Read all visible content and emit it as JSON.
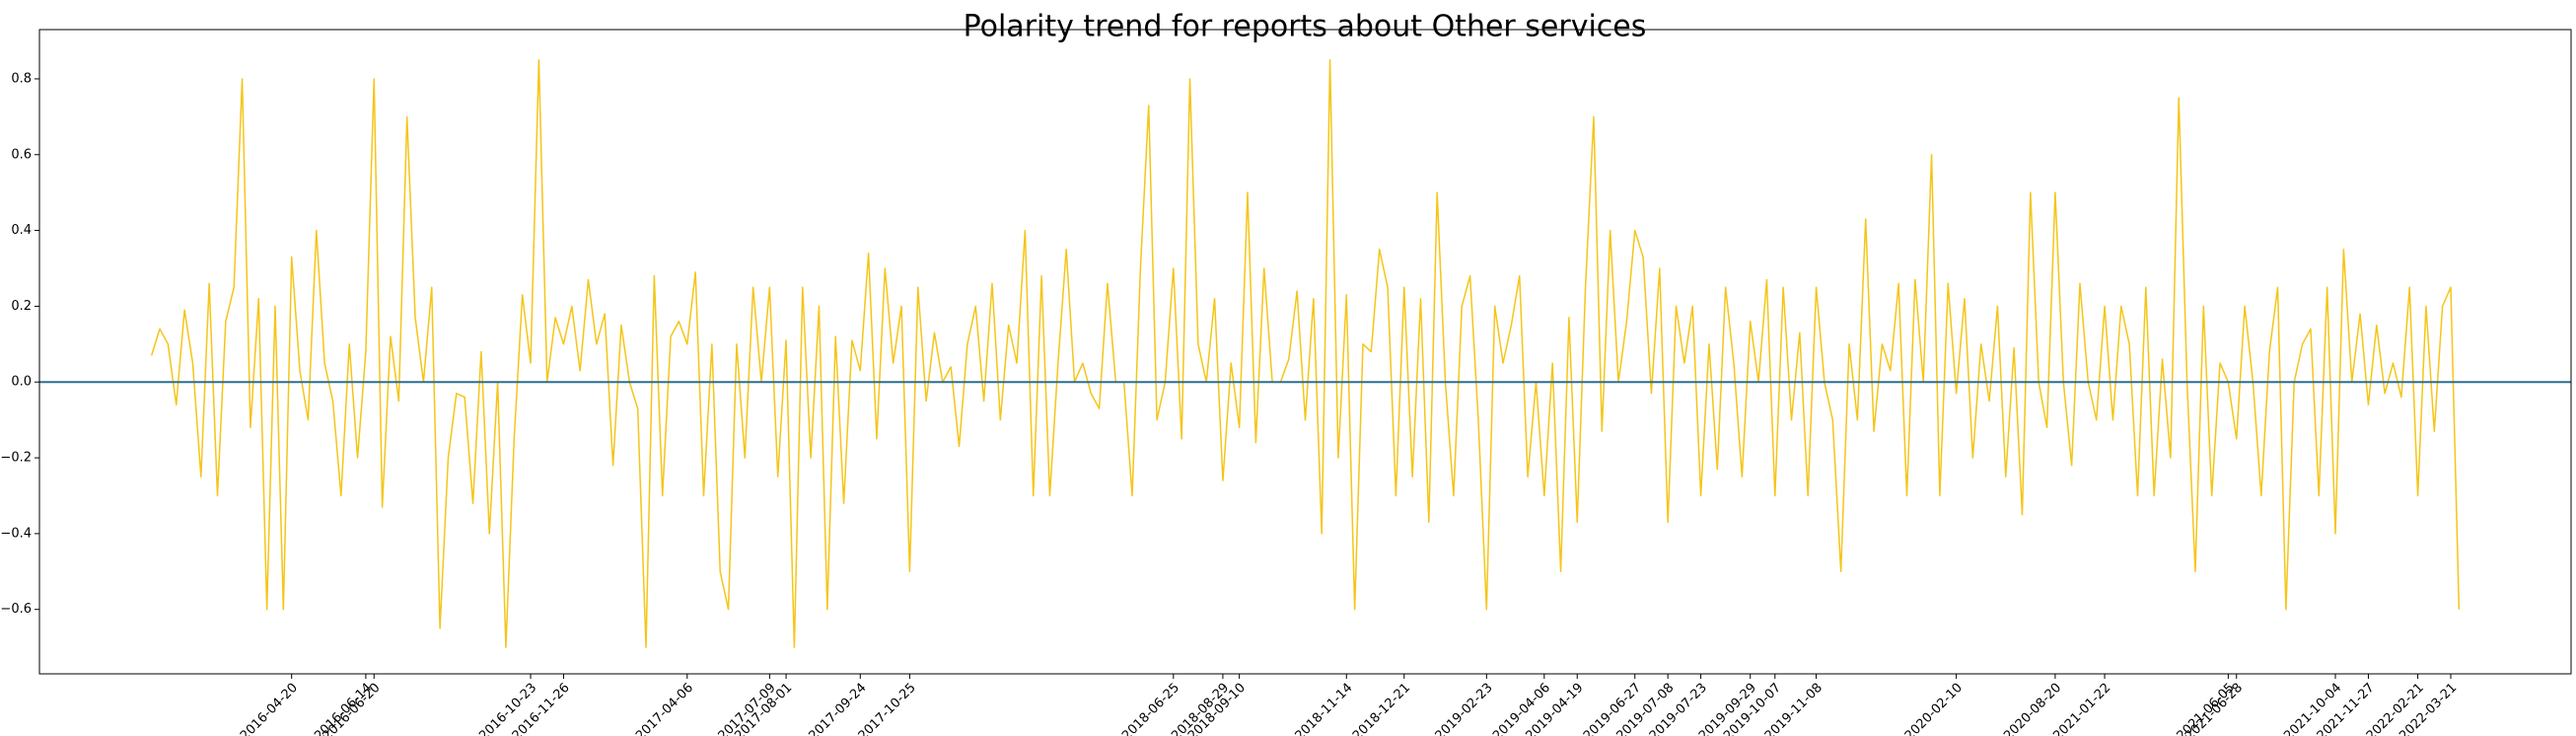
{
  "chart_data": {
    "type": "line",
    "title": "Polarity trend for reports about Other services",
    "color": "#f5c518",
    "hline": 0,
    "hline_color": "#2a6f8f",
    "ylim": [
      -0.77,
      0.93
    ],
    "yticks": [
      {
        "value": -0.6,
        "label": "−0.6"
      },
      {
        "value": -0.4,
        "label": "−0.4"
      },
      {
        "value": -0.2,
        "label": "−0.2"
      },
      {
        "value": 0,
        "label": "0.0"
      },
      0.2,
      0.4,
      0.6,
      0.8
    ],
    "categories": [
      null,
      null,
      null,
      null,
      null,
      null,
      null,
      null,
      null,
      null,
      null,
      null,
      null,
      null,
      null,
      null,
      null,
      "2016-04-20",
      null,
      null,
      null,
      null,
      null,
      null,
      null,
      null,
      "2016-06-14",
      "2016-06-20",
      null,
      null,
      null,
      null,
      null,
      null,
      null,
      null,
      null,
      null,
      null,
      null,
      null,
      null,
      null,
      null,
      null,
      null,
      "2016-10-23",
      null,
      null,
      null,
      "2016-11-26",
      null,
      null,
      null,
      null,
      null,
      null,
      null,
      null,
      null,
      null,
      null,
      null,
      null,
      null,
      "2017-04-06",
      null,
      null,
      null,
      null,
      null,
      null,
      null,
      null,
      null,
      "2017-07-09",
      null,
      "2017-08-01",
      null,
      null,
      null,
      null,
      null,
      null,
      null,
      null,
      "2017-09-24",
      null,
      null,
      null,
      null,
      null,
      "2017-10-25",
      null,
      null,
      null,
      null,
      null,
      null,
      null,
      null,
      null,
      null,
      null,
      null,
      null,
      null,
      null,
      null,
      null,
      null,
      null,
      null,
      null,
      null,
      null,
      null,
      null,
      null,
      null,
      null,
      null,
      null,
      null,
      "2018-06-25",
      null,
      null,
      null,
      null,
      null,
      "2018-08-29",
      null,
      "2018-09-10",
      null,
      null,
      null,
      null,
      null,
      null,
      null,
      null,
      null,
      null,
      null,
      null,
      "2018-11-14",
      null,
      null,
      null,
      null,
      null,
      null,
      "2018-12-21",
      null,
      null,
      null,
      null,
      null,
      null,
      null,
      null,
      null,
      "2019-02-23",
      null,
      null,
      null,
      null,
      null,
      null,
      "2019-04-06",
      null,
      null,
      null,
      "2019-04-19",
      null,
      null,
      null,
      null,
      null,
      null,
      "2019-06-27",
      null,
      null,
      null,
      "2019-07-08",
      null,
      null,
      null,
      "2019-07-23",
      null,
      null,
      null,
      null,
      null,
      "2019-09-29",
      null,
      null,
      "2019-10-07",
      null,
      null,
      null,
      null,
      "2019-11-08",
      null,
      null,
      null,
      null,
      null,
      null,
      null,
      null,
      null,
      null,
      null,
      null,
      null,
      null,
      null,
      null,
      "2020-02-10",
      null,
      null,
      null,
      null,
      null,
      null,
      null,
      null,
      null,
      null,
      null,
      "2020-08-20",
      null,
      null,
      null,
      null,
      null,
      "2021-01-22",
      null,
      null,
      null,
      null,
      null,
      null,
      null,
      null,
      null,
      null,
      null,
      null,
      null,
      null,
      "2021-06-05",
      "2021-06-28",
      null,
      null,
      null,
      null,
      null,
      null,
      null,
      null,
      null,
      null,
      null,
      "2021-10-04",
      null,
      null,
      null,
      "2021-11-27",
      null,
      null,
      null,
      null,
      null,
      "2022-02-21",
      null,
      null,
      null,
      "2022-03-21",
      null
    ],
    "values": [
      0.07,
      0.14,
      0.1,
      -0.06,
      0.19,
      0.05,
      -0.25,
      0.26,
      -0.3,
      0.16,
      0.25,
      0.8,
      -0.12,
      0.22,
      -0.6,
      0.2,
      -0.6,
      0.33,
      0.03,
      -0.1,
      0.4,
      0.05,
      -0.05,
      -0.3,
      0.1,
      -0.2,
      0.08,
      0.8,
      -0.33,
      0.12,
      -0.05,
      0.7,
      0.17,
      0.0,
      0.25,
      -0.65,
      -0.2,
      -0.03,
      -0.04,
      -0.32,
      0.08,
      -0.4,
      0.0,
      -0.7,
      -0.15,
      0.23,
      0.05,
      0.85,
      0.0,
      0.17,
      0.1,
      0.2,
      0.03,
      0.27,
      0.1,
      0.18,
      -0.22,
      0.15,
      0.0,
      -0.07,
      -0.7,
      0.28,
      -0.3,
      0.12,
      0.16,
      0.1,
      0.29,
      -0.3,
      0.1,
      -0.5,
      -0.6,
      0.1,
      -0.2,
      0.25,
      0.0,
      0.25,
      -0.25,
      0.11,
      -0.7,
      0.25,
      -0.2,
      0.2,
      -0.6,
      0.12,
      -0.32,
      0.11,
      0.03,
      0.34,
      -0.15,
      0.3,
      0.05,
      0.2,
      -0.5,
      0.25,
      -0.05,
      0.13,
      0.0,
      0.04,
      -0.17,
      0.1,
      0.2,
      -0.05,
      0.26,
      -0.1,
      0.15,
      0.05,
      0.4,
      -0.3,
      0.28,
      -0.3,
      0.05,
      0.35,
      0.0,
      0.05,
      -0.03,
      -0.07,
      0.26,
      0.0,
      0.0,
      -0.3,
      0.3,
      0.73,
      -0.1,
      0.0,
      0.3,
      -0.15,
      0.8,
      0.1,
      0.0,
      0.22,
      -0.26,
      0.05,
      -0.12,
      0.5,
      -0.16,
      0.3,
      0.0,
      0.0,
      0.06,
      0.24,
      -0.1,
      0.22,
      -0.4,
      0.85,
      -0.2,
      0.23,
      -0.6,
      0.1,
      0.08,
      0.35,
      0.25,
      -0.3,
      0.25,
      -0.25,
      0.22,
      -0.37,
      0.5,
      0.0,
      -0.3,
      0.2,
      0.28,
      -0.1,
      -0.6,
      0.2,
      0.05,
      0.15,
      0.28,
      -0.25,
      0.0,
      -0.3,
      0.05,
      -0.5,
      0.17,
      -0.37,
      0.25,
      0.7,
      -0.13,
      0.4,
      0.0,
      0.16,
      0.4,
      0.33,
      -0.03,
      0.3,
      -0.37,
      0.2,
      0.05,
      0.2,
      -0.3,
      0.1,
      -0.23,
      0.25,
      0.05,
      -0.25,
      0.16,
      0.0,
      0.27,
      -0.3,
      0.25,
      -0.1,
      0.13,
      -0.3,
      0.25,
      0.0,
      -0.1,
      -0.5,
      0.1,
      -0.1,
      0.43,
      -0.13,
      0.1,
      0.03,
      0.26,
      -0.3,
      0.27,
      0.0,
      0.6,
      -0.3,
      0.26,
      -0.03,
      0.22,
      -0.2,
      0.1,
      -0.05,
      0.2,
      -0.25,
      0.09,
      -0.35,
      0.5,
      0.0,
      -0.12,
      0.5,
      0.0,
      -0.22,
      0.26,
      0.0,
      -0.1,
      0.2,
      -0.1,
      0.2,
      0.1,
      -0.3,
      0.25,
      -0.3,
      0.06,
      -0.2,
      0.75,
      0.0,
      -0.5,
      0.2,
      -0.3,
      0.05,
      0.0,
      -0.15,
      0.2,
      0.0,
      -0.3,
      0.08,
      0.25,
      -0.6,
      0.0,
      0.1,
      0.14,
      -0.3,
      0.25,
      -0.4,
      0.35,
      0.0,
      0.18,
      -0.06,
      0.15,
      -0.03,
      0.05,
      -0.04,
      0.25,
      -0.3,
      0.2,
      -0.13,
      0.2,
      0.25,
      -0.6
    ]
  }
}
